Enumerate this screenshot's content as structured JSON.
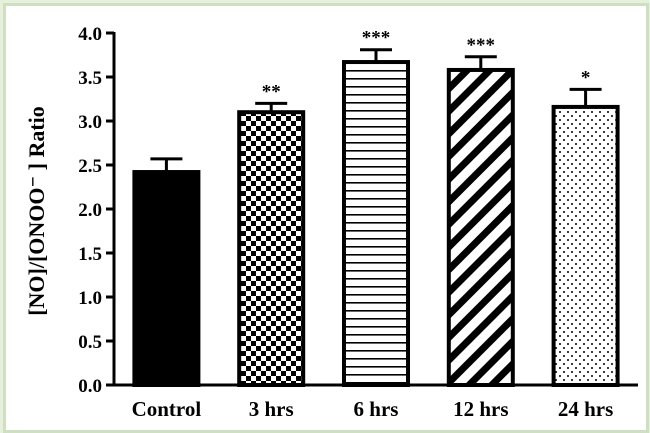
{
  "chart_data": {
    "type": "bar",
    "categories": [
      "Control",
      "3 hrs",
      "6 hrs",
      "12 hrs",
      "24 hrs"
    ],
    "values": [
      2.42,
      3.1,
      3.67,
      3.58,
      3.16
    ],
    "error_upper": [
      2.57,
      3.2,
      3.81,
      3.73,
      3.36
    ],
    "significance": [
      "",
      "**",
      "***",
      "***",
      "*"
    ],
    "patterns": [
      "solid",
      "checker",
      "horizontal-lines",
      "diagonal-stripes",
      "dots"
    ],
    "ylabel": "[NO]/[ONOO⁻ ] Ratio",
    "ylim": [
      0,
      4.0
    ],
    "yticks": [
      "0.0",
      "0.5",
      "1.0",
      "1.5",
      "2.0",
      "2.5",
      "3.0",
      "3.5",
      "4.0"
    ],
    "grid": false,
    "bar_color": "#000000"
  }
}
